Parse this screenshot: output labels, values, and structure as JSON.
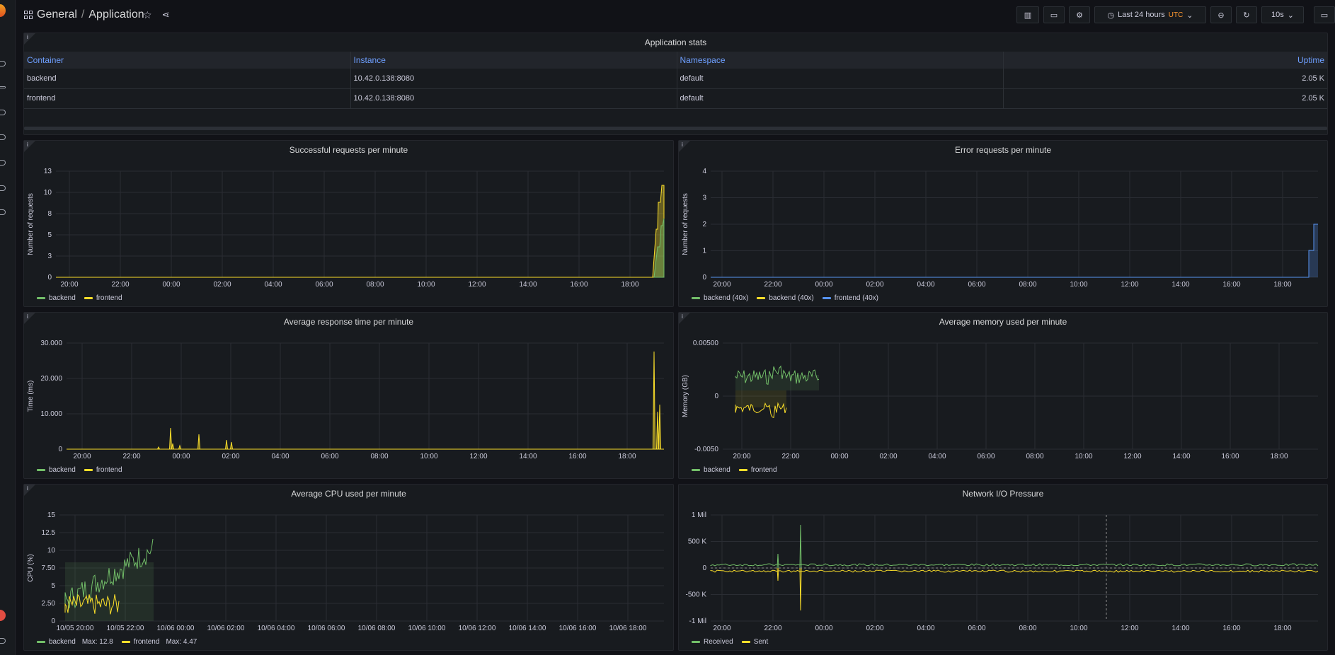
{
  "header": {
    "folder": "General",
    "separator": "/",
    "dashboard": "Application",
    "star_icon": "star-icon",
    "share_icon": "share-icon"
  },
  "toolbar": {
    "time_range": "Last 24 hours",
    "timezone": "UTC",
    "refresh_interval": "10s"
  },
  "colors": {
    "green": "#73bf69",
    "yellow": "#fade2a",
    "blue": "#5794f2",
    "grid": "#2a2d33"
  },
  "stats": {
    "title": "Application stats",
    "columns": [
      "Container",
      "Instance",
      "Namespace",
      "Uptime"
    ],
    "rows": [
      {
        "container": "backend",
        "instance": "10.42.0.138:8080",
        "namespace": "default",
        "uptime": "2.05 K"
      },
      {
        "container": "frontend",
        "instance": "10.42.0.138:8080",
        "namespace": "default",
        "uptime": "2.05 K"
      }
    ]
  },
  "panels": {
    "successful": {
      "title": "Successful requests per minute",
      "ylabel": "Number of requests",
      "yticks": [
        "13",
        "10",
        "8",
        "5",
        "3",
        "0"
      ],
      "xticks": [
        "20:00",
        "22:00",
        "00:00",
        "02:00",
        "04:00",
        "06:00",
        "08:00",
        "10:00",
        "12:00",
        "14:00",
        "16:00",
        "18:00"
      ],
      "legend": [
        {
          "name": "backend",
          "color": "#73bf69"
        },
        {
          "name": "frontend",
          "color": "#fade2a"
        }
      ]
    },
    "errors": {
      "title": "Error requests per minute",
      "ylabel": "Number of requests",
      "yticks": [
        "4",
        "3",
        "2",
        "1",
        "0"
      ],
      "xticks": [
        "20:00",
        "22:00",
        "00:00",
        "02:00",
        "04:00",
        "06:00",
        "08:00",
        "10:00",
        "12:00",
        "14:00",
        "16:00",
        "18:00"
      ],
      "legend": [
        {
          "name": "backend (40x)",
          "color": "#73bf69"
        },
        {
          "name": "backend (40x)",
          "color": "#fade2a"
        },
        {
          "name": "frontend (40x)",
          "color": "#5794f2"
        }
      ]
    },
    "response": {
      "title": "Average response time per minute",
      "ylabel": "Time (ms)",
      "yticks": [
        "30.000",
        "20.000",
        "10.000",
        "0"
      ],
      "xticks": [
        "20:00",
        "22:00",
        "00:00",
        "02:00",
        "04:00",
        "06:00",
        "08:00",
        "10:00",
        "12:00",
        "14:00",
        "16:00",
        "18:00"
      ],
      "legend": [
        {
          "name": "backend",
          "color": "#73bf69"
        },
        {
          "name": "frontend",
          "color": "#fade2a"
        }
      ]
    },
    "memory": {
      "title": "Average memory used per minute",
      "ylabel": "Memory (GB)",
      "yticks": [
        "0.00500",
        "0",
        "-0.0050"
      ],
      "xticks": [
        "20:00",
        "22:00",
        "00:00",
        "02:00",
        "04:00",
        "06:00",
        "08:00",
        "10:00",
        "12:00",
        "14:00",
        "16:00",
        "18:00"
      ],
      "legend": [
        {
          "name": "backend",
          "color": "#73bf69"
        },
        {
          "name": "frontend",
          "color": "#fade2a"
        }
      ]
    },
    "cpu": {
      "title": "Average CPU used per minute",
      "ylabel": "CPU (%)",
      "yticks": [
        "15",
        "12.5",
        "10",
        "7.50",
        "5",
        "2.50",
        "0"
      ],
      "xticks": [
        "10/05 20:00",
        "10/05 22:00",
        "10/06 00:00",
        "10/06 02:00",
        "10/06 04:00",
        "10/06 06:00",
        "10/06 08:00",
        "10/06 10:00",
        "10/06 12:00",
        "10/06 14:00",
        "10/06 16:00",
        "10/06 18:00"
      ],
      "legend": [
        {
          "name": "backend",
          "color": "#73bf69",
          "max": "Max: 12.8"
        },
        {
          "name": "frontend",
          "color": "#fade2a",
          "max": "Max: 4.47"
        }
      ]
    },
    "network": {
      "title": "Network I/O Pressure",
      "ylabel": "",
      "yticks": [
        "1 Mil",
        "500 K",
        "0",
        "-500 K",
        "-1 Mil"
      ],
      "xticks": [
        "20:00",
        "22:00",
        "00:00",
        "02:00",
        "04:00",
        "06:00",
        "08:00",
        "10:00",
        "12:00",
        "14:00",
        "16:00",
        "18:00"
      ],
      "legend": [
        {
          "name": "Received",
          "color": "#73bf69"
        },
        {
          "name": "Sent",
          "color": "#fade2a"
        }
      ]
    }
  }
}
